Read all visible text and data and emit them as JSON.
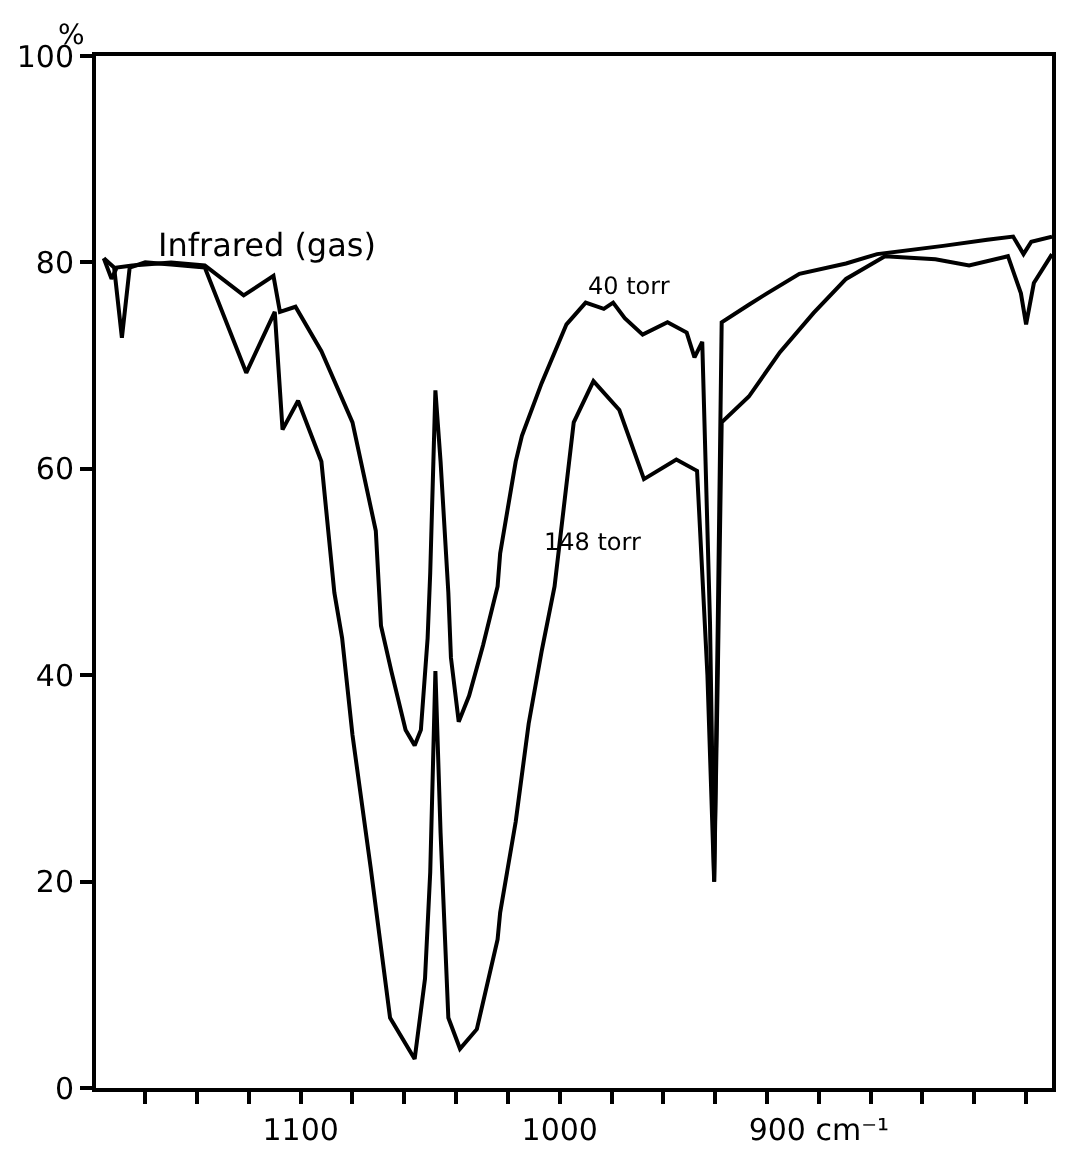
{
  "chart_data": {
    "type": "line",
    "ylabel": "%",
    "marker": "none",
    "line_style": "solid",
    "xlim": [
      1179,
      810
    ],
    "ylim": [
      0,
      100
    ],
    "xticks": [
      {
        "value": 1160,
        "label": null
      },
      {
        "value": 1140,
        "label": null
      },
      {
        "value": 1120,
        "label": null
      },
      1100,
      {
        "value": 1080,
        "label": null
      },
      {
        "value": 1060,
        "label": null
      },
      {
        "value": 1040,
        "label": null
      },
      {
        "value": 1020,
        "label": null
      },
      1000,
      {
        "value": 980,
        "label": null
      },
      {
        "value": 960,
        "label": null
      },
      {
        "value": 940,
        "label": null
      },
      {
        "value": 920,
        "label": null
      },
      {
        "value": 900,
        "label": "900 cm⁻¹"
      },
      {
        "value": 880,
        "label": null
      },
      {
        "value": 860,
        "label": null
      },
      {
        "value": 840,
        "label": null
      },
      {
        "value": 820,
        "label": null
      }
    ],
    "yticks": [
      0,
      20,
      40,
      60,
      80,
      100
    ],
    "annotations": [
      "Infrared (gas)",
      "40 torr",
      "148 torr"
    ],
    "series": [
      {
        "color": "#000000",
        "x": [
          1176,
          1173,
          1171,
          1165,
          1150,
          1137,
          1122,
          1110.5,
          1108,
          1102,
          1092,
          1080,
          1071,
          1069,
          1065,
          1059.5,
          1056,
          1053.6,
          1051,
          1050,
          1048,
          1046,
          1043,
          1042,
          1039,
          1035,
          1029.6,
          1024,
          1023,
          1017,
          1014.6,
          1007,
          997.4,
          990,
          983,
          979.4,
          974.9,
          968,
          958.4,
          951,
          948,
          945,
          942,
          940.4,
          939,
          937.5,
          927,
          920,
          907.5,
          889.5,
          877.5,
          852,
          835,
          825,
          821,
          818,
          810
        ],
        "values": [
          80.4,
          78.4,
          79.5,
          79.7,
          80,
          79.7,
          76.8,
          78.7,
          75.2,
          75.7,
          71.4,
          64.5,
          54,
          44.8,
          40.4,
          34.7,
          33.2,
          34.7,
          43.6,
          49.9,
          67.6,
          60.7,
          48,
          41.7,
          35.5,
          38,
          42.9,
          48.6,
          51.8,
          60.7,
          63.2,
          68.3,
          74,
          76.1,
          75.5,
          76.1,
          74.6,
          73,
          74.2,
          73.2,
          70.8,
          72.3,
          45,
          20,
          45,
          74.2,
          75.9,
          77,
          78.9,
          79.9,
          80.8,
          81.6,
          82.2,
          82.5,
          80.8,
          82,
          82.5
        ]
      },
      {
        "color": "#000000",
        "x": [
          1176,
          1172,
          1169,
          1166,
          1160,
          1150,
          1137,
          1121,
          1110,
          1107,
          1101,
          1092,
          1087,
          1084,
          1080,
          1073,
          1065.5,
          1056,
          1052,
          1050,
          1048,
          1046,
          1043,
          1038.5,
          1032,
          1024,
          1023,
          1017,
          1012,
          1007,
          1002,
          994.6,
          987,
          977,
          967.5,
          955,
          947,
          943,
          940.4,
          939,
          937.5,
          927,
          915,
          902,
          889.5,
          874.5,
          855,
          842,
          827,
          822,
          820,
          817,
          810
        ],
        "values": [
          80.4,
          79.5,
          72.7,
          79.5,
          80,
          79.8,
          79.5,
          69.3,
          75.2,
          63.8,
          66.6,
          60.7,
          48,
          43.6,
          34.2,
          21.4,
          6.8,
          2.8,
          10.6,
          20.9,
          40.4,
          24.7,
          6.8,
          3.8,
          5.7,
          14.4,
          17,
          25.8,
          35.3,
          42.3,
          48.6,
          64.5,
          68.5,
          65.7,
          59,
          60.9,
          59.8,
          40,
          20,
          40,
          64.5,
          67,
          71.3,
          75.1,
          78.4,
          80.6,
          80.3,
          79.7,
          80.6,
          77,
          74,
          78,
          80.8
        ]
      }
    ]
  }
}
